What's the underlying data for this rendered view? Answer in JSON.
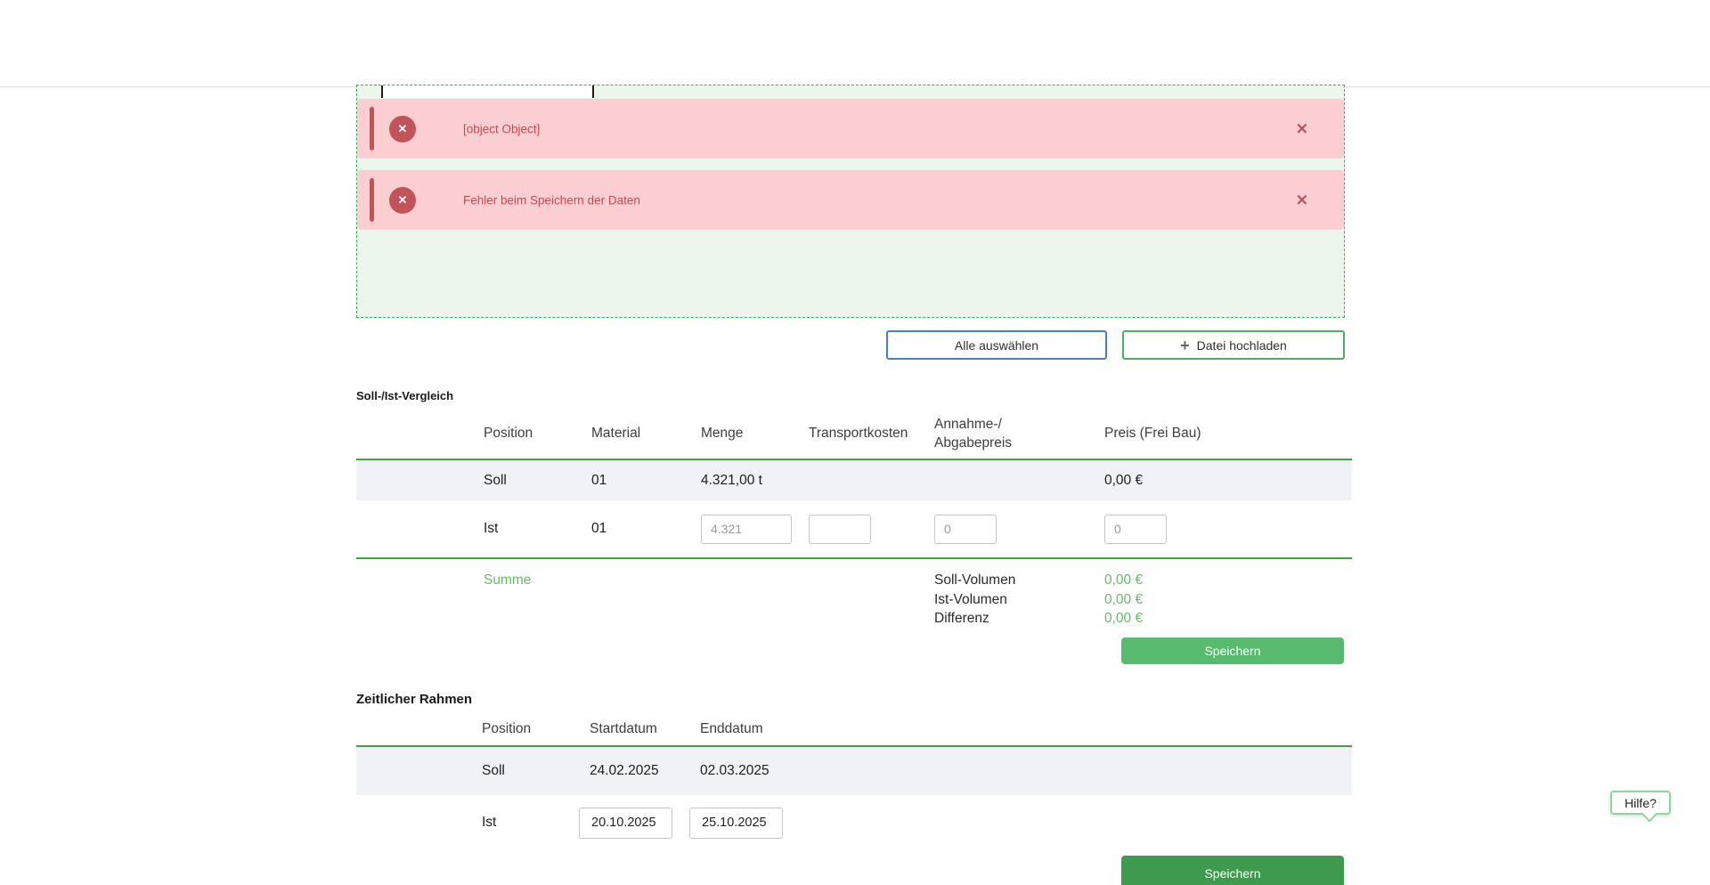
{
  "dropzone": {
    "alerts": [
      {
        "icon": "✕",
        "text": "[object Object]",
        "close_icon": "✕"
      },
      {
        "icon": "✕",
        "text": "Fehler beim Speichern der Daten",
        "close_icon": "✕"
      }
    ]
  },
  "toolbar": {
    "select_all_label": "Alle auswählen",
    "upload_label": "Datei hochladen",
    "upload_icon": "+"
  },
  "comparison": {
    "title": "Soll-/Ist-Vergleich",
    "headers": {
      "position": "Position",
      "material": "Material",
      "menge": "Menge",
      "transport": "Transportkosten",
      "annahme_line1": "Annahme-/",
      "annahme_line2": "Abgabepreis",
      "preis": "Preis (Frei Bau)"
    },
    "soll_row": {
      "label": "Soll",
      "material": "01",
      "menge": "4.321,00 t",
      "preis": "0,00 €"
    },
    "ist_row": {
      "label": "Ist",
      "material": "01",
      "menge_placeholder": "4.321",
      "annahme_placeholder": "0",
      "preis_placeholder": "0"
    },
    "summe": {
      "label": "Summe",
      "rows": [
        {
          "label": "Soll-Volumen",
          "value": "0,00 €"
        },
        {
          "label": "Ist-Volumen",
          "value": "0,00 €"
        },
        {
          "label": "Differenz",
          "value": "0,00 €"
        }
      ]
    },
    "save_label": "Speichern"
  },
  "timeframe": {
    "title": "Zeitlicher Rahmen",
    "headers": {
      "position": "Position",
      "start": "Startdatum",
      "end": "Enddatum"
    },
    "soll_row": {
      "label": "Soll",
      "start": "24.02.2025",
      "end": "02.03.2025"
    },
    "ist_row": {
      "label": "Ist",
      "start": "20.10.2025",
      "end": "25.10.2025"
    },
    "save_label": "Speichern"
  },
  "help": {
    "label": "Hilfe?"
  },
  "colors": {
    "accent_green": "#43a047",
    "dropzone_bg": "#ebf6ed",
    "dropzone_border": "#44a95c",
    "alert_bg": "#fbcfd2",
    "alert_red": "#c25359",
    "alert_text": "#c8494f",
    "row_bg": "#f0f2f7",
    "value_green": "#66bb6a",
    "button_green": "#58ba6e",
    "button_dark_green": "#3e9b4d",
    "button_blue_border": "#4a7fc1",
    "button_green_border": "#4cb05f",
    "help_border": "#8fd69e"
  }
}
